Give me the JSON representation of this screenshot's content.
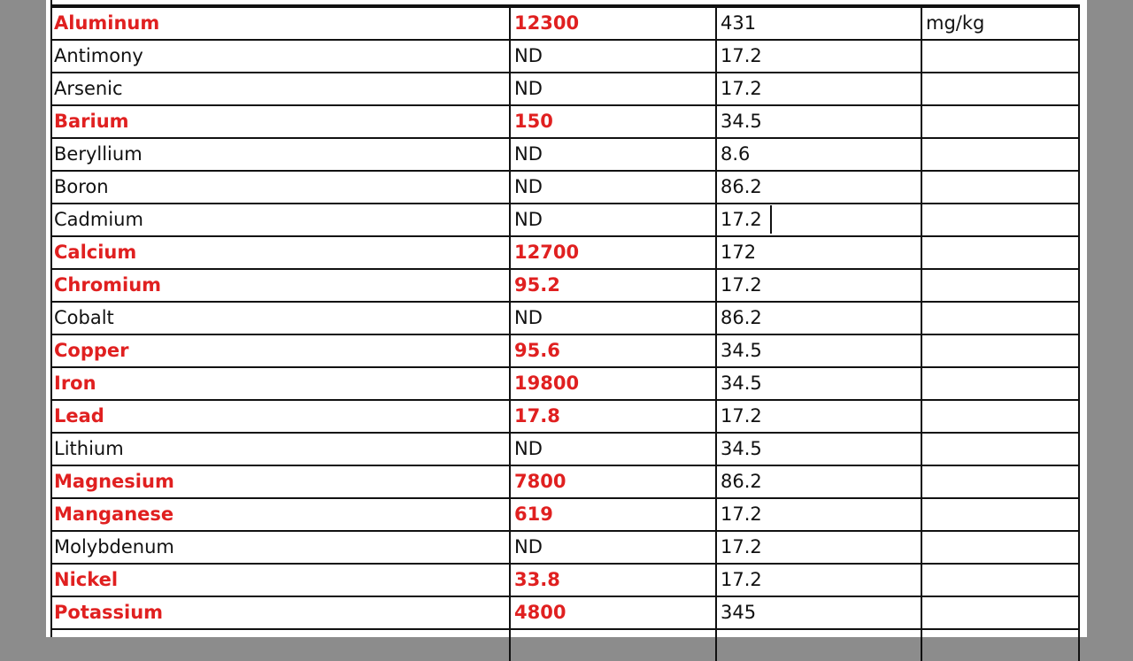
{
  "table": {
    "rows": [
      {
        "cells": [
          "Aluminum",
          "12300",
          "431",
          "mg/kg"
        ],
        "highlight": true
      },
      {
        "cells": [
          "Antimony",
          "ND",
          "17.2"
        ],
        "highlight": false
      },
      {
        "cells": [
          "Arsenic",
          "ND",
          "17.2"
        ],
        "highlight": false
      },
      {
        "cells": [
          "Barium",
          "150",
          "34.5"
        ],
        "highlight": true
      },
      {
        "cells": [
          "Beryllium",
          "ND",
          "8.6"
        ],
        "highlight": false
      },
      {
        "cells": [
          "Boron",
          "ND",
          "86.2"
        ],
        "highlight": false
      },
      {
        "cells": [
          "Cadmium",
          "ND",
          "17.2"
        ],
        "highlight": false
      },
      {
        "cells": [
          "Calcium",
          "12700",
          "172"
        ],
        "highlight": true
      },
      {
        "cells": [
          "Chromium",
          "95.2",
          "17.2"
        ],
        "highlight": true
      },
      {
        "cells": [
          "Cobalt",
          "ND",
          "86.2"
        ],
        "highlight": false
      },
      {
        "cells": [
          "Copper",
          "95.6",
          "34.5"
        ],
        "highlight": true
      },
      {
        "cells": [
          "Iron",
          "19800",
          "34.5"
        ],
        "highlight": true
      },
      {
        "cells": [
          "Lead",
          "17.8",
          "17.2"
        ],
        "highlight": true
      },
      {
        "cells": [
          "Lithium",
          "ND",
          "34.5"
        ],
        "highlight": false
      },
      {
        "cells": [
          "Magnesium",
          "7800",
          "86.2"
        ],
        "highlight": true
      },
      {
        "cells": [
          "Manganese",
          "619",
          "17.2"
        ],
        "highlight": true
      },
      {
        "cells": [
          "Molybdenum",
          "ND",
          "17.2"
        ],
        "highlight": false
      },
      {
        "cells": [
          "Nickel",
          "33.8",
          "17.2"
        ],
        "highlight": true
      },
      {
        "cells": [
          "Potassium",
          "4800",
          "345"
        ],
        "highlight": true
      }
    ]
  }
}
